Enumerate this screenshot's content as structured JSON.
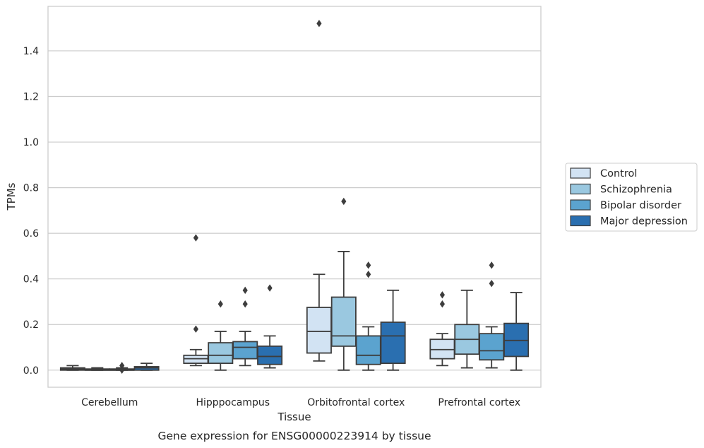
{
  "chart_data": {
    "type": "box",
    "title": "",
    "xlabel": "Tissue",
    "ylabel": "TPMs",
    "caption": "Gene expression for ENSG00000223914 by tissue",
    "ylim": [
      -0.075,
      1.595
    ],
    "yticks": [
      0.0,
      0.2,
      0.4,
      0.6,
      0.8,
      1.0,
      1.2,
      1.4
    ],
    "ytick_labels": [
      "0.0",
      "0.2",
      "0.4",
      "0.6",
      "0.8",
      "1.0",
      "1.2",
      "1.4"
    ],
    "grid": "horizontal",
    "legend_position": "right",
    "categories": [
      "Cerebellum",
      "Hipppocampus",
      "Orbitofrontal cortex",
      "Prefrontal cortex"
    ],
    "series": [
      {
        "name": "Control",
        "color": "#d2e3f3",
        "boxes": [
          {
            "whislo": 0.0,
            "q1": 0.0,
            "med": 0.005,
            "q3": 0.01,
            "whishi": 0.02,
            "fliers": []
          },
          {
            "whislo": 0.02,
            "q1": 0.03,
            "med": 0.05,
            "q3": 0.065,
            "whishi": 0.09,
            "fliers": [
              0.18,
              0.58
            ]
          },
          {
            "whislo": 0.04,
            "q1": 0.075,
            "med": 0.17,
            "q3": 0.275,
            "whishi": 0.42,
            "fliers": [
              1.52
            ]
          },
          {
            "whislo": 0.02,
            "q1": 0.05,
            "med": 0.09,
            "q3": 0.135,
            "whishi": 0.16,
            "fliers": [
              0.29,
              0.33
            ]
          }
        ]
      },
      {
        "name": "Schizophrenia",
        "color": "#9ac8e0",
        "boxes": [
          {
            "whislo": 0.0,
            "q1": 0.0,
            "med": 0.0,
            "q3": 0.005,
            "whishi": 0.01,
            "fliers": []
          },
          {
            "whislo": 0.0,
            "q1": 0.03,
            "med": 0.065,
            "q3": 0.12,
            "whishi": 0.17,
            "fliers": [
              0.29
            ]
          },
          {
            "whislo": 0.0,
            "q1": 0.105,
            "med": 0.15,
            "q3": 0.32,
            "whishi": 0.52,
            "fliers": [
              0.74
            ]
          },
          {
            "whislo": 0.01,
            "q1": 0.07,
            "med": 0.135,
            "q3": 0.2,
            "whishi": 0.35,
            "fliers": []
          }
        ]
      },
      {
        "name": "Bipolar disorder",
        "color": "#5ba3cf",
        "boxes": [
          {
            "whislo": 0.0,
            "q1": 0.0,
            "med": 0.0,
            "q3": 0.005,
            "whishi": 0.01,
            "fliers": [
              0.0,
              0.02
            ]
          },
          {
            "whislo": 0.02,
            "q1": 0.05,
            "med": 0.1,
            "q3": 0.125,
            "whishi": 0.17,
            "fliers": [
              0.29,
              0.35
            ]
          },
          {
            "whislo": 0.0,
            "q1": 0.025,
            "med": 0.065,
            "q3": 0.15,
            "whishi": 0.19,
            "fliers": [
              0.42,
              0.46
            ]
          },
          {
            "whislo": 0.01,
            "q1": 0.045,
            "med": 0.085,
            "q3": 0.16,
            "whishi": 0.19,
            "fliers": [
              0.38,
              0.46
            ]
          }
        ]
      },
      {
        "name": "Major depression",
        "color": "#2a6fb0",
        "boxes": [
          {
            "whislo": 0.0,
            "q1": 0.0,
            "med": 0.01,
            "q3": 0.015,
            "whishi": 0.03,
            "fliers": []
          },
          {
            "whislo": 0.01,
            "q1": 0.025,
            "med": 0.06,
            "q3": 0.105,
            "whishi": 0.15,
            "fliers": [
              0.36
            ]
          },
          {
            "whislo": 0.0,
            "q1": 0.03,
            "med": 0.15,
            "q3": 0.21,
            "whishi": 0.35,
            "fliers": []
          },
          {
            "whislo": 0.0,
            "q1": 0.06,
            "med": 0.13,
            "q3": 0.205,
            "whishi": 0.34,
            "fliers": []
          }
        ]
      }
    ]
  }
}
